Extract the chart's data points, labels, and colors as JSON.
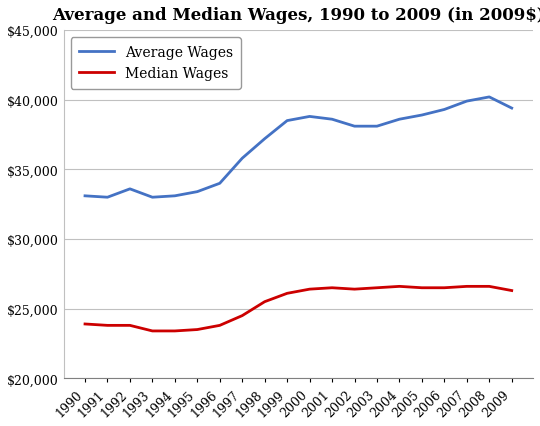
{
  "title": "Average and Median Wages, 1990 to 2009 (in 2009$)",
  "years": [
    1990,
    1991,
    1992,
    1993,
    1994,
    1995,
    1996,
    1997,
    1998,
    1999,
    2000,
    2001,
    2002,
    2003,
    2004,
    2005,
    2006,
    2007,
    2008,
    2009
  ],
  "average_wages": [
    33100,
    33000,
    33600,
    33000,
    33100,
    33400,
    34000,
    35800,
    37200,
    38500,
    38800,
    38600,
    38100,
    38100,
    38600,
    38900,
    39300,
    39900,
    40200,
    39400
  ],
  "median_wages": [
    23900,
    23800,
    23800,
    23400,
    23400,
    23500,
    23800,
    24500,
    25500,
    26100,
    26400,
    26500,
    26400,
    26500,
    26600,
    26500,
    26500,
    26600,
    26600,
    26300
  ],
  "average_color": "#4472c4",
  "median_color": "#cc0000",
  "background_color": "#ffffff",
  "ylim": [
    20000,
    45000
  ],
  "yticks": [
    20000,
    25000,
    30000,
    35000,
    40000,
    45000
  ],
  "legend_labels": [
    "Average Wages",
    "Median Wages"
  ],
  "grid_color": "#c0c0c0",
  "line_width": 2.0,
  "title_fontsize": 12,
  "tick_fontsize": 9,
  "legend_fontsize": 10
}
